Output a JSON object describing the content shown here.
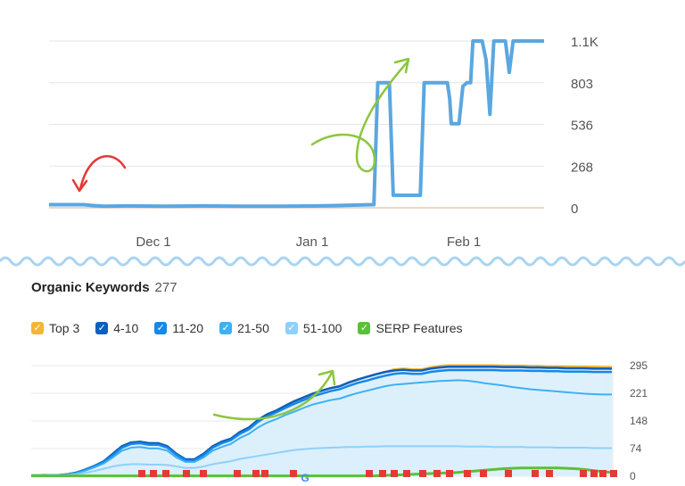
{
  "top_chart": {
    "chart_data": {
      "type": "line",
      "x_ticks": [
        "Dec 1",
        "Jan 1",
        "Feb 1"
      ],
      "y_ticks": [
        "1.1K",
        "803",
        "536",
        "268",
        "0"
      ],
      "ylim": [
        0,
        1071
      ],
      "grid": true,
      "series": [
        {
          "color": "#5ba7e0",
          "x": [
            0,
            45,
            55,
            70,
            100,
            150,
            200,
            250,
            300,
            350,
            420,
            425,
            430,
            435,
            440,
            445,
            450,
            470,
            475,
            480,
            485,
            490,
            495,
            505,
            515,
            518,
            520,
            525,
            530,
            535,
            540,
            545,
            548,
            550,
            555,
            560,
            565,
            570,
            575,
            580,
            585,
            590,
            595,
            600,
            605,
            610,
            615,
            620,
            625,
            630,
            635,
            640
          ],
          "values": [
            20,
            20,
            15,
            10,
            12,
            10,
            12,
            10,
            10,
            12,
            20,
            803,
            803,
            803,
            803,
            80,
            80,
            80,
            80,
            80,
            803,
            803,
            803,
            803,
            803,
            700,
            540,
            540,
            540,
            780,
            803,
            803,
            1071,
            1071,
            1071,
            1071,
            950,
            600,
            1071,
            1071,
            1071,
            1071,
            870,
            1071,
            1071,
            1071,
            1071,
            1071,
            1071,
            1071,
            1071,
            1071
          ]
        }
      ]
    }
  },
  "bottom": {
    "title": "Organic Keywords",
    "count": "277"
  },
  "legend": [
    {
      "label": "Top 3",
      "color": "#f2b634"
    },
    {
      "label": "4-10",
      "color": "#0b5fbd"
    },
    {
      "label": "11-20",
      "color": "#1688e8"
    },
    {
      "label": "21-50",
      "color": "#3fb0f2"
    },
    {
      "label": "51-100",
      "color": "#8fd0fb"
    },
    {
      "label": "SERP Features",
      "color": "#5bbf3a"
    }
  ],
  "bottom_chart": {
    "chart_data": {
      "type": "area",
      "y_ticks": [
        "295",
        "221",
        "148",
        "74",
        "0"
      ],
      "ylim": [
        0,
        295
      ],
      "grid": true,
      "x": [
        0,
        10,
        20,
        30,
        40,
        50,
        60,
        70,
        80,
        90,
        100,
        110,
        120,
        130,
        140,
        150,
        160,
        170,
        180,
        190,
        200,
        210,
        220,
        230,
        240,
        250,
        260,
        270,
        280,
        290,
        300,
        310,
        320,
        330,
        340,
        350,
        360,
        370,
        380,
        390,
        400,
        410,
        420,
        430,
        440,
        450,
        460,
        470,
        480,
        490,
        500,
        510,
        520,
        530,
        540,
        550,
        560,
        570,
        580,
        590,
        600,
        610,
        620,
        630,
        640
      ],
      "series": [
        {
          "name": "Top 3",
          "color": "#f2b634",
          "values": [
            2,
            2,
            3,
            3,
            5,
            10,
            18,
            28,
            40,
            60,
            80,
            90,
            92,
            88,
            88,
            80,
            60,
            45,
            45,
            60,
            80,
            92,
            100,
            118,
            130,
            150,
            165,
            175,
            188,
            200,
            210,
            220,
            228,
            235,
            240,
            250,
            258,
            265,
            272,
            278,
            285,
            287,
            285,
            285,
            290,
            294,
            296,
            296,
            296,
            296,
            296,
            296,
            295,
            295,
            295,
            294,
            294,
            293,
            293,
            293,
            292,
            292,
            292,
            291,
            291
          ]
        },
        {
          "name": "4-10",
          "color": "#0b5fbd",
          "values": [
            2,
            2,
            3,
            3,
            5,
            10,
            18,
            28,
            40,
            60,
            80,
            90,
            92,
            88,
            88,
            80,
            60,
            45,
            45,
            60,
            80,
            92,
            100,
            118,
            130,
            150,
            165,
            175,
            188,
            200,
            210,
            220,
            228,
            235,
            240,
            250,
            258,
            265,
            272,
            278,
            282,
            284,
            282,
            282,
            287,
            290,
            292,
            292,
            292,
            292,
            292,
            292,
            291,
            291,
            291,
            290,
            290,
            289,
            289,
            288,
            288,
            288,
            287,
            287,
            287
          ]
        },
        {
          "name": "11-20",
          "color": "#1688e8",
          "values": [
            2,
            2,
            3,
            3,
            5,
            9,
            17,
            27,
            38,
            56,
            76,
            86,
            88,
            84,
            84,
            76,
            57,
            42,
            42,
            56,
            76,
            88,
            96,
            113,
            125,
            145,
            160,
            170,
            182,
            193,
            203,
            213,
            220,
            227,
            232,
            241,
            249,
            255,
            262,
            268,
            273,
            275,
            273,
            273,
            278,
            281,
            283,
            283,
            283,
            283,
            283,
            283,
            282,
            282,
            282,
            281,
            281,
            280,
            280,
            279,
            279,
            279,
            278,
            278,
            278
          ]
        },
        {
          "name": "21-50",
          "color": "#3fb0f2",
          "values": [
            2,
            2,
            3,
            3,
            4,
            8,
            15,
            24,
            34,
            50,
            68,
            76,
            78,
            74,
            74,
            68,
            50,
            38,
            38,
            50,
            68,
            78,
            86,
            102,
            113,
            130,
            143,
            152,
            163,
            172,
            182,
            191,
            197,
            203,
            207,
            215,
            222,
            228,
            234,
            240,
            244,
            246,
            248,
            250,
            252,
            254,
            255,
            256,
            255,
            252,
            248,
            245,
            242,
            238,
            235,
            232,
            230,
            228,
            226,
            224,
            222,
            220,
            219,
            218,
            218
          ]
        },
        {
          "name": "51-100",
          "color": "#8fd0fb",
          "values": [
            2,
            2,
            3,
            3,
            3,
            5,
            9,
            14,
            20,
            26,
            30,
            32,
            32,
            31,
            31,
            30,
            26,
            22,
            22,
            26,
            32,
            36,
            40,
            46,
            50,
            54,
            58,
            62,
            66,
            70,
            72,
            74,
            75,
            76,
            77,
            78,
            78,
            79,
            79,
            80,
            80,
            80,
            80,
            80,
            80,
            80,
            80,
            80,
            79,
            79,
            79,
            78,
            78,
            78,
            78,
            77,
            77,
            77,
            76,
            76,
            76,
            76,
            75,
            75,
            75
          ]
        },
        {
          "name": "SERP Features",
          "color": "#5bbf3a",
          "values": [
            1,
            1,
            1,
            1,
            1,
            1,
            1,
            1,
            1,
            1,
            1,
            1,
            1,
            1,
            1,
            1,
            1,
            1,
            1,
            1,
            1,
            1,
            1,
            1,
            1,
            1,
            1,
            1,
            1,
            1,
            1,
            1,
            1,
            1,
            1,
            1,
            1,
            1,
            1,
            2,
            3,
            4,
            5,
            6,
            7,
            8,
            9,
            10,
            12,
            14,
            16,
            18,
            20,
            21,
            22,
            22,
            22,
            22,
            22,
            21,
            20,
            18,
            15,
            12,
            10
          ]
        }
      ]
    }
  },
  "markers": {
    "flag_color": "#e53935",
    "google_icon": "google-g-icon",
    "flag_icon": "flag-icon"
  },
  "annotations": {
    "red_arrow_color": "#e53935",
    "green_arrow_color": "#8cc63f",
    "divider_color": "#a8d4f2"
  }
}
